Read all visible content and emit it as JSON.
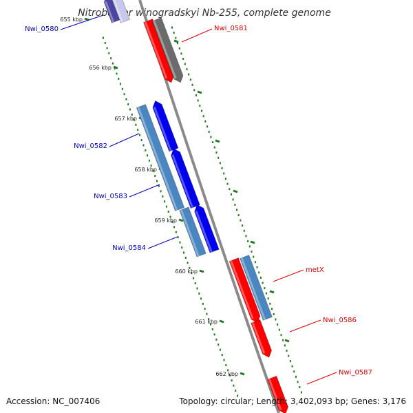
{
  "title": "Nitrobacter winogradskyi Nb-255, complete genome",
  "footer": {
    "accession": "Accession: NC_007406",
    "stats": "Topology: circular; Length: 3,402,093 bp; Genes: 3,176"
  },
  "colors": {
    "backbone": "#8a8a8a",
    "tick": "#1c7a1c",
    "forward_cds": "#ff0000",
    "forward_other": "#6b6b6b",
    "reverse_cds": "#0000ee",
    "reverse_other": "#4a86c0",
    "label_forward": "#dd0000",
    "label_reverse": "#0000bb"
  },
  "ticks": [
    {
      "label": "655 kbp"
    },
    {
      "label": "656 kbp"
    },
    {
      "label": "657 kbp"
    },
    {
      "label": "658 kbp"
    },
    {
      "label": "659 kbp"
    },
    {
      "label": "660 kbp"
    },
    {
      "label": "661 kbp"
    },
    {
      "label": "662 kbp"
    }
  ],
  "genes": [
    {
      "name": "Nwi_0580",
      "strand": "reverse"
    },
    {
      "name": "Nwi_0581",
      "strand": "forward"
    },
    {
      "name": "Nwi_0582",
      "strand": "reverse"
    },
    {
      "name": "Nwi_0583",
      "strand": "reverse"
    },
    {
      "name": "Nwi_0584",
      "strand": "reverse"
    },
    {
      "name": "metX",
      "strand": "forward"
    },
    {
      "name": "Nwi_0586",
      "strand": "forward"
    },
    {
      "name": "Nwi_0587",
      "strand": "forward"
    }
  ]
}
